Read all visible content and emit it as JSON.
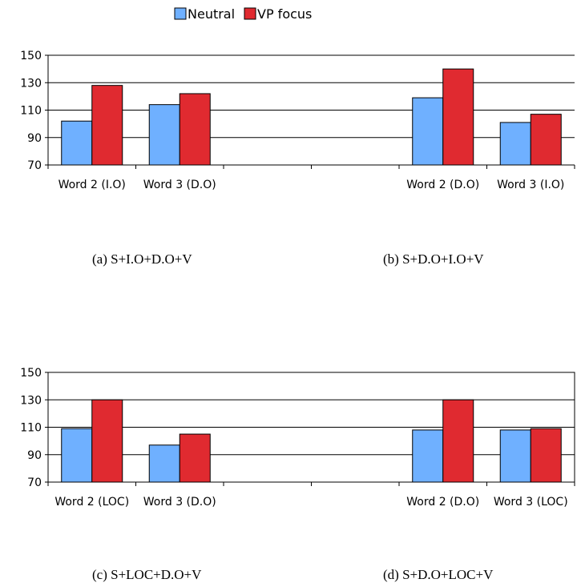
{
  "legend": [
    {
      "name": "Neutral",
      "color": "#6fb0ff"
    },
    {
      "name": "VP focus",
      "color": "#e02a30"
    }
  ],
  "captions": [
    "(a) S+I.O+D.O+V",
    "(b) S+D.O+I.O+V",
    "(c) S+LOC+D.O+V",
    "(d) S+D.O+LOC+V"
  ],
  "chart_data": [
    {
      "type": "bar",
      "ylim": [
        70,
        150
      ],
      "yticks": [
        70,
        90,
        110,
        130,
        150
      ],
      "grid": true,
      "legend_position": "top",
      "categories": [
        "Word 2 (I.O)",
        "Word 3 (D.O)",
        "",
        "",
        "Word 2 (D.O)",
        "Word 3 (I.O)"
      ],
      "series": [
        {
          "name": "Neutral",
          "values": [
            102,
            114,
            null,
            null,
            119,
            101
          ]
        },
        {
          "name": "VP focus",
          "values": [
            128,
            122,
            null,
            null,
            140,
            107
          ]
        }
      ]
    },
    {
      "type": "bar",
      "ylim": [
        70,
        150
      ],
      "yticks": [
        70,
        90,
        110,
        130,
        150
      ],
      "grid": true,
      "categories": [
        "Word 2 (LOC)",
        "Word 3 (D.O)",
        "",
        "",
        "Word 2 (D.O)",
        "Word 3 (LOC)"
      ],
      "series": [
        {
          "name": "Neutral",
          "values": [
            109,
            97,
            null,
            null,
            108,
            108
          ]
        },
        {
          "name": "VP focus",
          "values": [
            130,
            105,
            null,
            null,
            130,
            109
          ]
        }
      ]
    }
  ]
}
